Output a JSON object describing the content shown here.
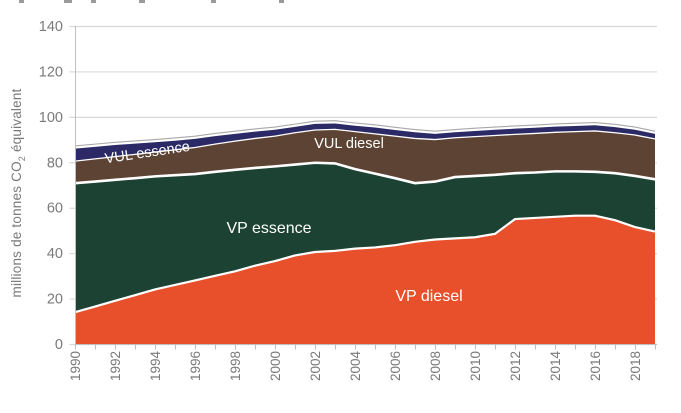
{
  "chart_data": {
    "type": "area",
    "stacked": true,
    "title": "",
    "title_note": "title line cropped out of frame at top edge",
    "ylabel": "millions de tonnes CO2 équivalent",
    "xlabel": "",
    "ylim": [
      0,
      140
    ],
    "y_ticks": [
      0,
      20,
      40,
      60,
      80,
      100,
      120,
      140
    ],
    "x": [
      1990,
      1991,
      1992,
      1993,
      1994,
      1995,
      1996,
      1997,
      1998,
      1999,
      2000,
      2001,
      2002,
      2003,
      2004,
      2005,
      2006,
      2007,
      2008,
      2009,
      2010,
      2011,
      2012,
      2013,
      2014,
      2015,
      2016,
      2017,
      2018,
      2019
    ],
    "x_tick_labels": [
      "1990",
      "1992",
      "1994",
      "1996",
      "1998",
      "2000",
      "2002",
      "2004",
      "2006",
      "2008",
      "2010",
      "2012",
      "2014",
      "2016",
      "2018"
    ],
    "grid": "horizontal",
    "legend_position": "labels inside areas",
    "series": [
      {
        "name": "VP diesel",
        "color": "#E8502B",
        "values": [
          14,
          16.5,
          19,
          21.5,
          24,
          26,
          28,
          30,
          32,
          34.5,
          36.5,
          39,
          40.5,
          41,
          42,
          42.5,
          43.5,
          45,
          46,
          46.5,
          47,
          48.5,
          55,
          55.5,
          56,
          56.5,
          56.5,
          54.5,
          51.5,
          49.5
        ]
      },
      {
        "name": "VP essence",
        "color": "#1B4232",
        "values": [
          56.8,
          55,
          53.3,
          51.5,
          49.8,
          48.3,
          46.8,
          45.8,
          44.7,
          43,
          41.7,
          40,
          39.3,
          38.5,
          35,
          32.5,
          29.5,
          25.8,
          25.5,
          27,
          27,
          26,
          20.2,
          20,
          20,
          19.5,
          19.3,
          20.7,
          22.5,
          23
        ]
      },
      {
        "name": "VUL diesel",
        "color": "#5C4334",
        "values": [
          9.7,
          10,
          10.2,
          10.5,
          10.7,
          11.2,
          11.7,
          12.2,
          12.6,
          13,
          13.3,
          14,
          14.4,
          15,
          16.5,
          17.5,
          18.5,
          19.7,
          18.5,
          17.3,
          17.3,
          17.3,
          17.1,
          17.2,
          17.2,
          17.5,
          18,
          17.8,
          18,
          17.8
        ]
      },
      {
        "name": "VUL essence",
        "color": "#2B2A66",
        "values": [
          5.5,
          5.3,
          5.1,
          4.7,
          4.3,
          4,
          3.8,
          3.5,
          3.2,
          3,
          2.8,
          2.6,
          2.7,
          2.6,
          2.6,
          2.8,
          2.7,
          2.7,
          2.5,
          2.4,
          2.5,
          2.5,
          2.5,
          2.5,
          2.5,
          2.5,
          2.5,
          2.5,
          2.3,
          2.2
        ]
      }
    ],
    "unlabeled_top_band": {
      "approx_value": 1.2,
      "outline_color": "#A8A8A8",
      "fill": "#FFFFFF"
    },
    "colors": {
      "grid": "#D8D8D8",
      "axis": "#BFBFBF",
      "tick_text": "#7A7A7A",
      "separator": "#FFFFFF",
      "area_label_text": "#FFFFFF"
    }
  }
}
